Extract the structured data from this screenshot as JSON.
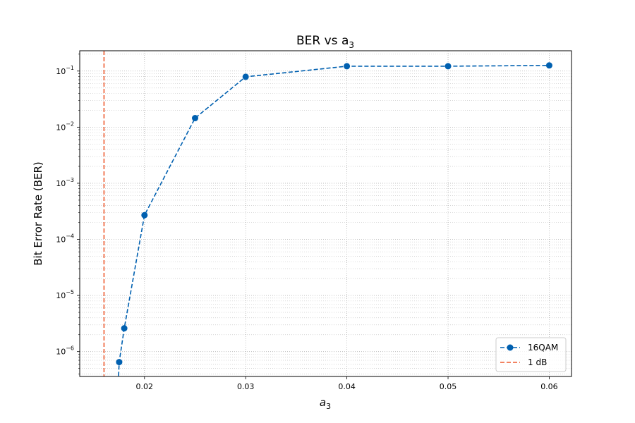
{
  "chart_data": {
    "type": "line",
    "title": "BER vs a",
    "title_subscript": "3",
    "xlabel": "a",
    "xlabel_subscript": "3",
    "ylabel": "Bit Error Rate (BER)",
    "y_scale": "log",
    "xlim": [
      0.0136,
      0.0622
    ],
    "ylim": [
      3.6e-07,
      0.23
    ],
    "x_ticks": [
      0.02,
      0.03,
      0.04,
      0.05,
      0.06
    ],
    "x_tick_labels": [
      "0.02",
      "0.03",
      "0.04",
      "0.05",
      "0.06"
    ],
    "y_ticks": [
      1e-06,
      1e-05,
      0.0001,
      0.001,
      0.01,
      0.1
    ],
    "y_tick_labels": [
      {
        "base": "10",
        "exp": "−6"
      },
      {
        "base": "10",
        "exp": "−5"
      },
      {
        "base": "10",
        "exp": "−4"
      },
      {
        "base": "10",
        "exp": "−3"
      },
      {
        "base": "10",
        "exp": "−2"
      },
      {
        "base": "10",
        "exp": "−1"
      }
    ],
    "grid": true,
    "legend_position": "lower right",
    "series": [
      {
        "name": "16QAM",
        "color": "#0060b0",
        "linestyle": "dashed",
        "marker": "circle",
        "x": [
          0.0173,
          0.0175,
          0.018,
          0.02,
          0.025,
          0.03,
          0.04,
          0.05,
          0.06
        ],
        "y": [
          1e-07,
          6.5e-07,
          2.6e-06,
          0.00027,
          0.0145,
          0.079,
          0.122,
          0.122,
          0.126
        ]
      }
    ],
    "reference_lines": [
      {
        "name": "1 dB",
        "orientation": "vertical",
        "x": 0.016,
        "color": "#ee5a2e",
        "linestyle": "dashed"
      }
    ]
  }
}
